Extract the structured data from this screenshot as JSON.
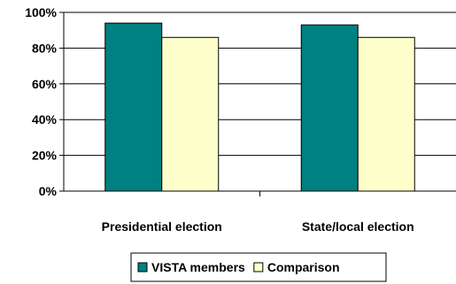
{
  "chart_data": {
    "type": "bar",
    "categories": [
      "Presidential election",
      "State/local election"
    ],
    "series": [
      {
        "name": "VISTA members",
        "values": [
          94,
          93
        ],
        "color": "#008080"
      },
      {
        "name": "Comparison",
        "values": [
          86,
          86
        ],
        "color": "#FFFFCC"
      }
    ],
    "ylim": [
      0,
      100
    ],
    "yticks": [
      0,
      20,
      40,
      60,
      80,
      100
    ],
    "ytick_labels": [
      "0%",
      "20%",
      "40%",
      "60%",
      "80%",
      "100%"
    ],
    "grid": true,
    "legend_position": "bottom"
  }
}
